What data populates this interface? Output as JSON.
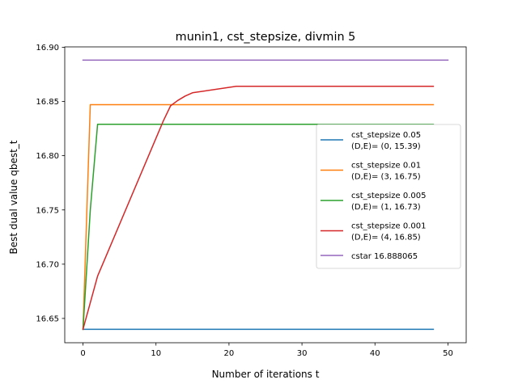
{
  "chart_data": {
    "type": "line",
    "title": "munin1, cst_stepsize, divmin 5",
    "xlabel": "Number of iterations t",
    "ylabel": "Best dual value qbest_t",
    "xlim": [
      -2.5,
      52.5
    ],
    "ylim": [
      16.6276,
      16.9003
    ],
    "xticks": [
      0,
      10,
      20,
      30,
      40,
      50
    ],
    "xtick_labels": [
      "0",
      "10",
      "20",
      "30",
      "40",
      "50"
    ],
    "yticks": [
      16.65,
      16.7,
      16.75,
      16.8,
      16.85,
      16.9
    ],
    "ytick_labels": [
      "16.65",
      "16.70",
      "16.75",
      "16.80",
      "16.85",
      "16.90"
    ],
    "grid": false,
    "legend_position": "center-right",
    "series": [
      {
        "name": "cst_stepsize 0.05\n(D,E)= (0, 15.39)",
        "color": "#1f77b4",
        "x": [
          0,
          48
        ],
        "y": [
          16.64,
          16.64
        ]
      },
      {
        "name": "cst_stepsize 0.01\n(D,E)= (3, 16.75)",
        "color": "#ff7f0e",
        "x": [
          0,
          1,
          48
        ],
        "y": [
          16.64,
          16.847,
          16.847
        ]
      },
      {
        "name": "cst_stepsize 0.005\n(D,E)= (1, 16.73)",
        "color": "#2ca02c",
        "x": [
          0,
          1,
          2,
          48
        ],
        "y": [
          16.64,
          16.75,
          16.829,
          16.829
        ]
      },
      {
        "name": "cst_stepsize 0.001\n(D,E)= (4, 16.85)",
        "color": "#d62728",
        "x": [
          0,
          2,
          11,
          12,
          13,
          14,
          15,
          21,
          48
        ],
        "y": [
          16.64,
          16.689,
          16.832,
          16.846,
          16.851,
          16.855,
          16.858,
          16.864,
          16.864
        ]
      },
      {
        "name": "cstar 16.888065",
        "color": "#9467bd",
        "x": [
          0,
          50
        ],
        "y": [
          16.888065,
          16.888065
        ]
      }
    ]
  }
}
